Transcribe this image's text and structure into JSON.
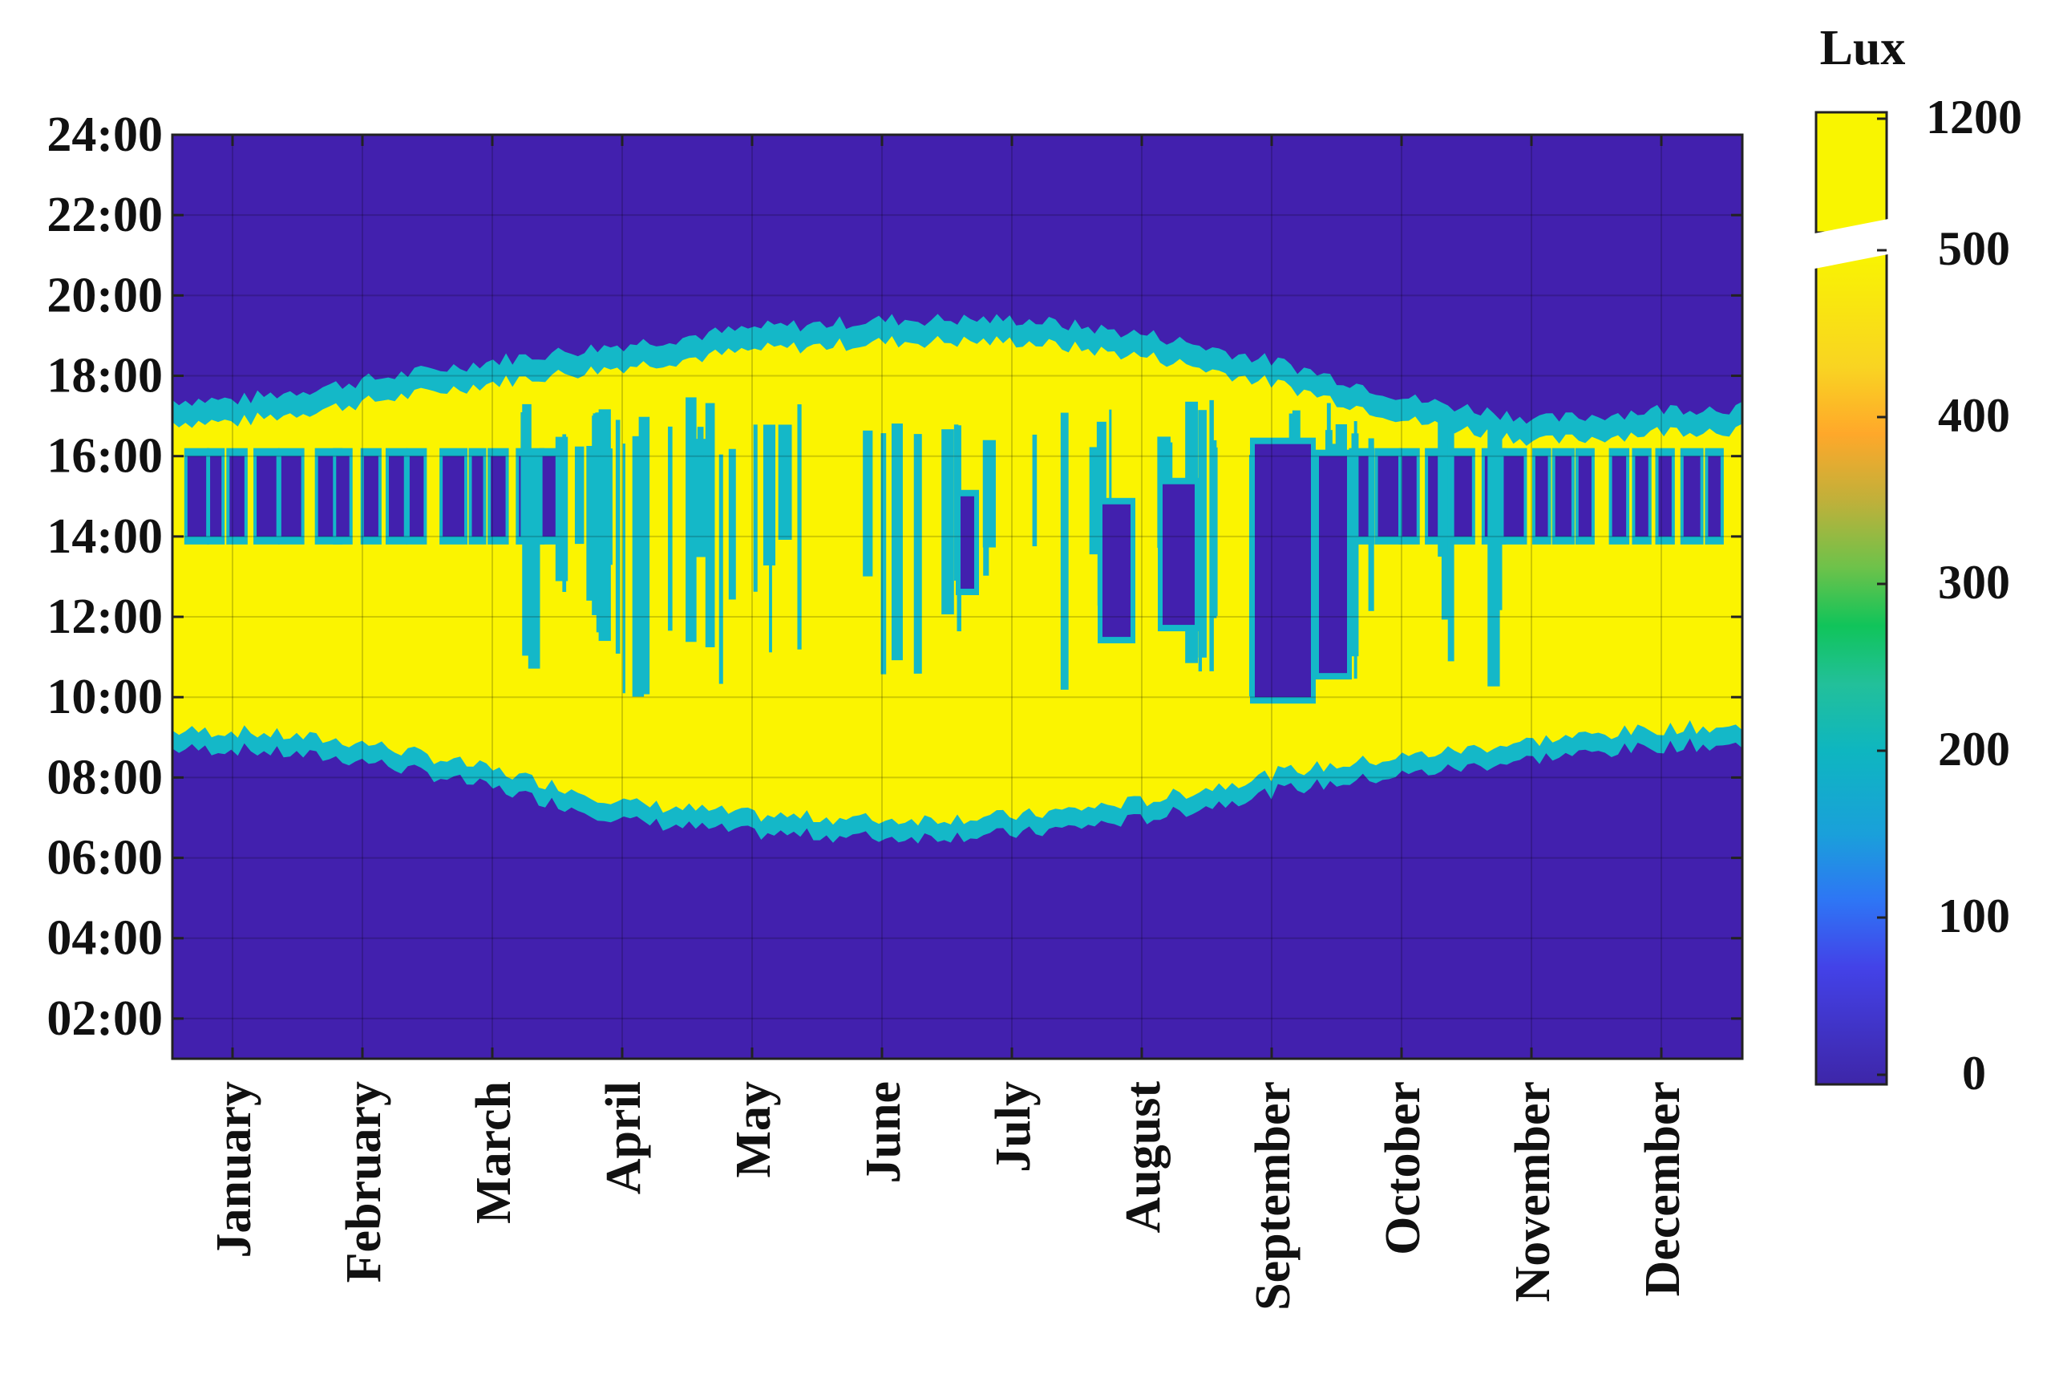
{
  "chart_data": {
    "type": "heatmap",
    "title": "",
    "xlabel": "",
    "ylabel": "",
    "x_categories": [
      "January",
      "February",
      "March",
      "April",
      "May",
      "June",
      "July",
      "August",
      "September",
      "October",
      "November",
      "December"
    ],
    "y_tick_labels": [
      "02:00",
      "04:00",
      "06:00",
      "08:00",
      "10:00",
      "12:00",
      "14:00",
      "16:00",
      "18:00",
      "20:00",
      "22:00",
      "24:00"
    ],
    "y_tick_hours": [
      2,
      4,
      6,
      8,
      10,
      12,
      14,
      16,
      18,
      20,
      22,
      24
    ],
    "ylim_hours": [
      1,
      24
    ],
    "grid": true,
    "colorbar": {
      "title": "Lux",
      "tick_labels": [
        "0",
        "100",
        "200",
        "300",
        "400",
        "500",
        "1200"
      ],
      "tick_values": [
        0,
        100,
        200,
        300,
        400,
        500,
        1200
      ],
      "broken_axis_between": [
        500,
        1200
      ],
      "colormap": "parula"
    },
    "colors": {
      "dark": "#4220AE",
      "mid": "#14B8C8",
      "bright": "#FBF400"
    },
    "envelope": {
      "months": [
        1,
        2,
        3,
        4,
        5,
        6,
        7,
        8,
        9,
        10,
        11,
        12
      ],
      "sunrise_hour": [
        8.7,
        8.4,
        7.7,
        6.9,
        6.6,
        6.5,
        6.6,
        7.0,
        7.7,
        8.1,
        8.5,
        8.8
      ],
      "sunset_hour": [
        17.4,
        17.9,
        18.4,
        18.8,
        19.2,
        19.4,
        19.4,
        19.0,
        18.3,
        17.4,
        16.9,
        17.2
      ],
      "midday_dark_gap_hours": [
        14.0,
        16.0
      ]
    }
  }
}
